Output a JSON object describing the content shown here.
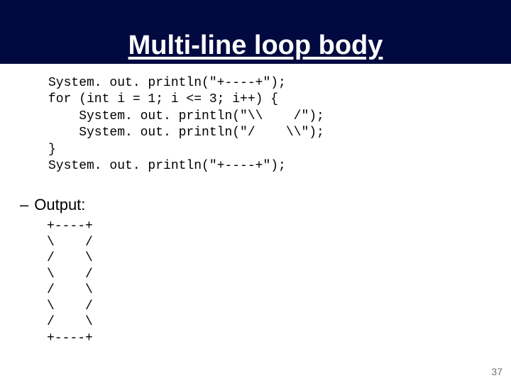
{
  "slide": {
    "title": "Multi-line loop body",
    "title_bar_color": "#000a40",
    "title_text_color": "#ffffff",
    "title_fontsize": 38,
    "background_color": "#ffffff"
  },
  "code": {
    "font_family": "Courier New",
    "fontsize": 18,
    "text_color": "#000000",
    "lines": "System. out. println(\"+----+\");\nfor (int i = 1; i <= 3; i++) {\n    System. out. println(\"\\\\    /\");\n    System. out. println(\"/    \\\\\");\n}\nSystem. out. println(\"+----+\");"
  },
  "output": {
    "label": "Output:",
    "bullet_dash": "–",
    "label_fontsize": 22,
    "label_font_family": "Arial",
    "block_font_family": "Courier New",
    "block_fontsize": 18,
    "text_color": "#000000",
    "lines": "+----+\n\\    /\n/    \\\n\\    /\n/    \\\n\\    /\n/    \\\n+----+"
  },
  "page_number": {
    "value": "37",
    "color": "#707070",
    "fontsize": 14
  }
}
